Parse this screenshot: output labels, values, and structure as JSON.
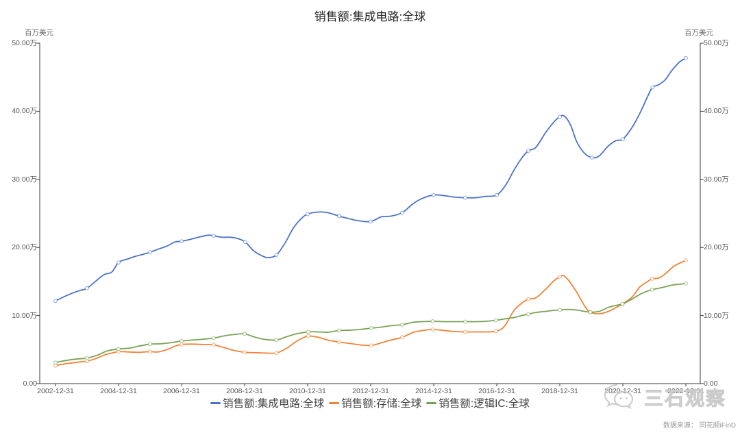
{
  "chart_data": {
    "type": "line",
    "title": "销售额:集成电路:全球",
    "y_axis_name": "百万美元",
    "value_unit": "万 百万美元 (axis ticks shown as 万, i.e. ×10,000 million USD)",
    "x_format": "decimal year; .96 ≈ Dec-31 of that year",
    "ylim": [
      0,
      50
    ],
    "grid": false,
    "legend_position": "bottom",
    "y_tick_values": [
      50,
      40,
      30,
      20,
      10,
      0
    ],
    "y_tick_labels": [
      "50.00万",
      "40.00万",
      "30.00万",
      "20.00万",
      "10.00万",
      "0.00"
    ],
    "x_tick_labels": [
      "2002-12-31",
      "2004-12-31",
      "2006-12-31",
      "2008-12-31",
      "2010-12-31",
      "2012-12-31",
      "2014-12-31",
      "2016-12-31",
      "2018-12-31",
      "2020-12-31",
      "2022-12-31"
    ],
    "x_tick_years": [
      2002,
      2004,
      2006,
      2008,
      2010,
      2012,
      2014,
      2016,
      2018,
      2020,
      2022
    ],
    "series": [
      {
        "id": "ic",
        "name": "销售额:集成电路:全球",
        "color": "#4a72c8",
        "points": [
          [
            2002.96,
            12.15
          ],
          [
            2003.25,
            12.8
          ],
          [
            2003.5,
            13.3
          ],
          [
            2003.75,
            13.7
          ],
          [
            2003.96,
            14.0
          ],
          [
            2004.25,
            15.1
          ],
          [
            2004.5,
            16.0
          ],
          [
            2004.75,
            16.4
          ],
          [
            2004.96,
            17.8
          ],
          [
            2005.25,
            18.3
          ],
          [
            2005.5,
            18.7
          ],
          [
            2005.75,
            19.0
          ],
          [
            2005.96,
            19.3
          ],
          [
            2006.25,
            19.8
          ],
          [
            2006.5,
            20.2
          ],
          [
            2006.75,
            20.8
          ],
          [
            2006.96,
            20.9
          ],
          [
            2007.25,
            21.2
          ],
          [
            2007.5,
            21.5
          ],
          [
            2007.8,
            21.8
          ],
          [
            2007.98,
            21.7
          ],
          [
            2008.25,
            21.5
          ],
          [
            2008.5,
            21.5
          ],
          [
            2008.75,
            21.3
          ],
          [
            2008.98,
            20.8
          ],
          [
            2009.25,
            19.5
          ],
          [
            2009.5,
            18.8
          ],
          [
            2009.7,
            18.5
          ],
          [
            2009.97,
            18.9
          ],
          [
            2010.25,
            20.7
          ],
          [
            2010.5,
            22.8
          ],
          [
            2010.75,
            24.2
          ],
          [
            2010.96,
            24.9
          ],
          [
            2011.3,
            25.2
          ],
          [
            2011.6,
            25.1
          ],
          [
            2011.96,
            24.6
          ],
          [
            2012.3,
            24.2
          ],
          [
            2012.6,
            23.9
          ],
          [
            2012.96,
            23.8
          ],
          [
            2013.3,
            24.5
          ],
          [
            2013.6,
            24.6
          ],
          [
            2013.96,
            25.1
          ],
          [
            2014.3,
            26.4
          ],
          [
            2014.6,
            27.2
          ],
          [
            2014.96,
            27.7
          ],
          [
            2015.3,
            27.6
          ],
          [
            2015.6,
            27.4
          ],
          [
            2015.96,
            27.3
          ],
          [
            2016.3,
            27.3
          ],
          [
            2016.6,
            27.5
          ],
          [
            2016.96,
            27.7
          ],
          [
            2017.25,
            29.2
          ],
          [
            2017.5,
            31.3
          ],
          [
            2017.75,
            33.1
          ],
          [
            2017.96,
            34.2
          ],
          [
            2018.2,
            34.7
          ],
          [
            2018.5,
            36.8
          ],
          [
            2018.75,
            38.3
          ],
          [
            2018.96,
            39.2
          ],
          [
            2019.1,
            39.3
          ],
          [
            2019.3,
            38.0
          ],
          [
            2019.5,
            35.5
          ],
          [
            2019.75,
            33.8
          ],
          [
            2019.98,
            33.2
          ],
          [
            2020.2,
            33.4
          ],
          [
            2020.5,
            34.9
          ],
          [
            2020.75,
            35.7
          ],
          [
            2020.96,
            35.9
          ],
          [
            2021.25,
            37.6
          ],
          [
            2021.5,
            39.7
          ],
          [
            2021.75,
            42.2
          ],
          [
            2021.9,
            43.5
          ],
          [
            2022.1,
            43.9
          ],
          [
            2022.3,
            44.6
          ],
          [
            2022.5,
            45.9
          ],
          [
            2022.75,
            47.2
          ],
          [
            2022.96,
            47.8
          ]
        ]
      },
      {
        "id": "memory",
        "name": "销售额:存储:全球",
        "color": "#f08236",
        "points": [
          [
            2002.96,
            2.65
          ],
          [
            2003.25,
            2.9
          ],
          [
            2003.5,
            3.05
          ],
          [
            2003.75,
            3.2
          ],
          [
            2003.96,
            3.3
          ],
          [
            2004.25,
            3.7
          ],
          [
            2004.5,
            4.2
          ],
          [
            2004.75,
            4.5
          ],
          [
            2004.96,
            4.7
          ],
          [
            2005.3,
            4.65
          ],
          [
            2005.6,
            4.6
          ],
          [
            2005.96,
            4.7
          ],
          [
            2006.2,
            4.65
          ],
          [
            2006.5,
            5.0
          ],
          [
            2006.75,
            5.5
          ],
          [
            2006.96,
            5.75
          ],
          [
            2007.3,
            5.8
          ],
          [
            2007.6,
            5.75
          ],
          [
            2007.98,
            5.7
          ],
          [
            2008.3,
            5.3
          ],
          [
            2008.6,
            4.9
          ],
          [
            2008.96,
            4.6
          ],
          [
            2009.3,
            4.55
          ],
          [
            2009.6,
            4.5
          ],
          [
            2009.97,
            4.5
          ],
          [
            2010.3,
            5.2
          ],
          [
            2010.6,
            6.2
          ],
          [
            2010.85,
            6.8
          ],
          [
            2010.98,
            7.0
          ],
          [
            2011.3,
            6.8
          ],
          [
            2011.6,
            6.4
          ],
          [
            2011.96,
            6.1
          ],
          [
            2012.3,
            5.9
          ],
          [
            2012.6,
            5.7
          ],
          [
            2012.98,
            5.6
          ],
          [
            2013.3,
            6.0
          ],
          [
            2013.6,
            6.4
          ],
          [
            2013.96,
            6.8
          ],
          [
            2014.3,
            7.5
          ],
          [
            2014.6,
            7.8
          ],
          [
            2014.93,
            7.95
          ],
          [
            2015.3,
            7.8
          ],
          [
            2015.6,
            7.65
          ],
          [
            2015.96,
            7.6
          ],
          [
            2016.3,
            7.6
          ],
          [
            2016.6,
            7.6
          ],
          [
            2016.93,
            7.7
          ],
          [
            2017.2,
            8.4
          ],
          [
            2017.5,
            10.7
          ],
          [
            2017.75,
            11.8
          ],
          [
            2017.96,
            12.4
          ],
          [
            2018.2,
            12.6
          ],
          [
            2018.5,
            13.8
          ],
          [
            2018.75,
            15.0
          ],
          [
            2018.96,
            15.7
          ],
          [
            2019.1,
            15.8
          ],
          [
            2019.3,
            14.8
          ],
          [
            2019.5,
            13.4
          ],
          [
            2019.75,
            11.4
          ],
          [
            2019.93,
            10.5
          ],
          [
            2020.2,
            10.25
          ],
          [
            2020.5,
            10.6
          ],
          [
            2020.75,
            11.2
          ],
          [
            2020.95,
            11.7
          ],
          [
            2021.25,
            12.7
          ],
          [
            2021.5,
            14.2
          ],
          [
            2021.75,
            15.0
          ],
          [
            2021.89,
            15.4
          ],
          [
            2022.1,
            15.5
          ],
          [
            2022.3,
            16.1
          ],
          [
            2022.6,
            17.3
          ],
          [
            2022.96,
            18.1
          ]
        ]
      },
      {
        "id": "logic",
        "name": "销售额:逻辑IC:全球",
        "color": "#77a355",
        "points": [
          [
            2002.96,
            3.1
          ],
          [
            2003.3,
            3.4
          ],
          [
            2003.6,
            3.6
          ],
          [
            2003.96,
            3.75
          ],
          [
            2004.3,
            4.2
          ],
          [
            2004.6,
            4.8
          ],
          [
            2004.96,
            5.1
          ],
          [
            2005.3,
            5.2
          ],
          [
            2005.6,
            5.5
          ],
          [
            2005.96,
            5.8
          ],
          [
            2006.3,
            5.85
          ],
          [
            2006.6,
            6.0
          ],
          [
            2006.96,
            6.25
          ],
          [
            2007.3,
            6.4
          ],
          [
            2007.6,
            6.5
          ],
          [
            2007.98,
            6.7
          ],
          [
            2008.3,
            7.0
          ],
          [
            2008.6,
            7.2
          ],
          [
            2008.96,
            7.3
          ],
          [
            2009.3,
            6.8
          ],
          [
            2009.6,
            6.5
          ],
          [
            2009.97,
            6.4
          ],
          [
            2010.3,
            6.9
          ],
          [
            2010.6,
            7.3
          ],
          [
            2010.98,
            7.6
          ],
          [
            2011.3,
            7.6
          ],
          [
            2011.6,
            7.55
          ],
          [
            2011.96,
            7.8
          ],
          [
            2012.3,
            7.85
          ],
          [
            2012.6,
            7.95
          ],
          [
            2012.98,
            8.15
          ],
          [
            2013.3,
            8.3
          ],
          [
            2013.6,
            8.5
          ],
          [
            2013.96,
            8.65
          ],
          [
            2014.3,
            9.0
          ],
          [
            2014.6,
            9.1
          ],
          [
            2014.93,
            9.15
          ],
          [
            2015.3,
            9.1
          ],
          [
            2015.6,
            9.1
          ],
          [
            2015.96,
            9.1
          ],
          [
            2016.3,
            9.1
          ],
          [
            2016.6,
            9.15
          ],
          [
            2016.93,
            9.3
          ],
          [
            2017.2,
            9.5
          ],
          [
            2017.5,
            9.7
          ],
          [
            2017.75,
            10.0
          ],
          [
            2017.96,
            10.2
          ],
          [
            2018.2,
            10.45
          ],
          [
            2018.5,
            10.6
          ],
          [
            2018.75,
            10.75
          ],
          [
            2018.96,
            10.8
          ],
          [
            2019.2,
            10.9
          ],
          [
            2019.5,
            10.8
          ],
          [
            2019.75,
            10.6
          ],
          [
            2019.93,
            10.5
          ],
          [
            2020.2,
            10.6
          ],
          [
            2020.5,
            11.2
          ],
          [
            2020.75,
            11.5
          ],
          [
            2020.95,
            11.7
          ],
          [
            2021.25,
            12.4
          ],
          [
            2021.5,
            13.1
          ],
          [
            2021.75,
            13.6
          ],
          [
            2021.89,
            13.8
          ],
          [
            2022.2,
            14.1
          ],
          [
            2022.5,
            14.45
          ],
          [
            2022.75,
            14.6
          ],
          [
            2022.96,
            14.7
          ]
        ]
      }
    ]
  },
  "watermark": {
    "text": "三石观察"
  },
  "source": "数据来源： 同花顺iFinD"
}
